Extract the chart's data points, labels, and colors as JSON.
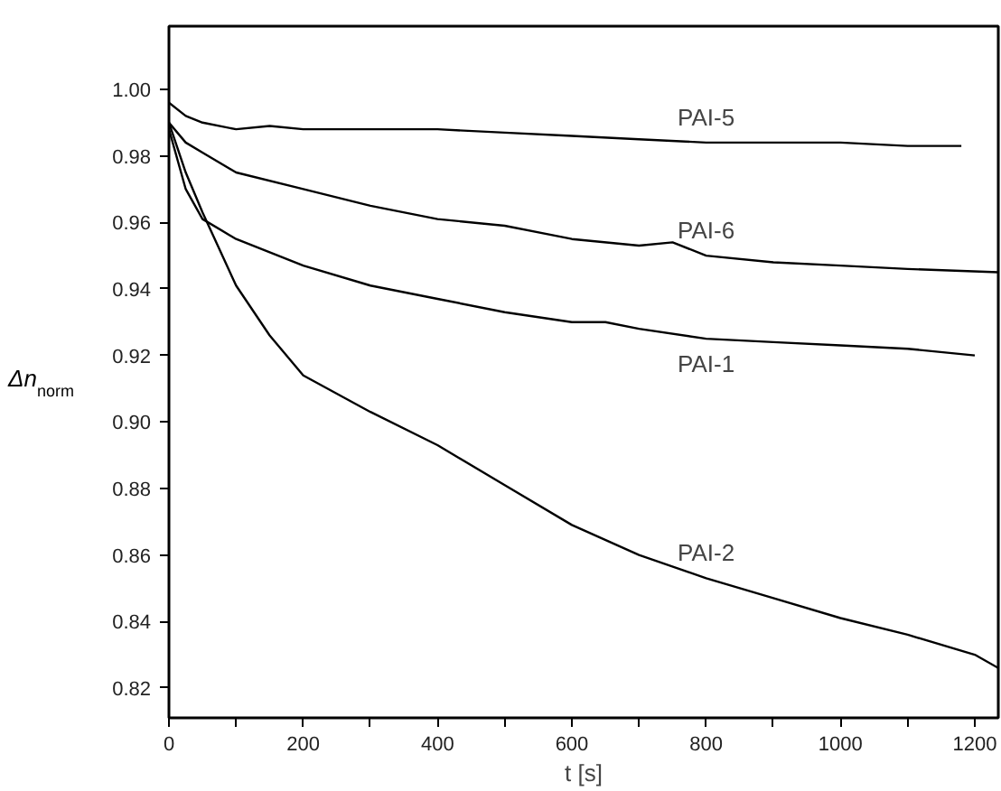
{
  "chart_data": {
    "type": "line",
    "xlabel": "t [s]",
    "ylabel": "Δn$_{norm}$",
    "xlim": [
      0,
      1235
    ],
    "ylim": [
      0.811,
      1.019
    ],
    "xticks": [
      0,
      {
        "value": 100,
        "label": null
      },
      200,
      {
        "value": 300,
        "label": null
      },
      400,
      {
        "value": 500,
        "label": null
      },
      600,
      {
        "value": 700,
        "label": null
      },
      800,
      {
        "value": 900,
        "label": null
      },
      1000,
      {
        "value": 1100,
        "label": null
      },
      1200
    ],
    "yticks": [
      {
        "value": 0.82,
        "label": "0.82"
      },
      {
        "value": 0.84,
        "label": "0.84"
      },
      {
        "value": 0.86,
        "label": "0.86"
      },
      {
        "value": 0.88,
        "label": "0.88"
      },
      {
        "value": 0.9,
        "label": "0.90"
      },
      {
        "value": 0.92,
        "label": "0.92"
      },
      {
        "value": 0.94,
        "label": "0.94"
      },
      {
        "value": 0.96,
        "label": "0.96"
      },
      {
        "value": 0.98,
        "label": "0.98"
      },
      {
        "value": 1.0,
        "label": "1.00"
      }
    ],
    "grid": false,
    "marker": "none",
    "line_style": "solid",
    "series": [
      {
        "name": "PAI-5",
        "color": "#000000",
        "x": [
          0,
          25,
          50,
          100,
          150,
          200,
          300,
          400,
          500,
          600,
          700,
          800,
          900,
          1000,
          1100,
          1180
        ],
        "values": [
          0.996,
          0.992,
          0.99,
          0.988,
          0.989,
          0.988,
          0.988,
          0.988,
          0.987,
          0.986,
          0.985,
          0.984,
          0.984,
          0.984,
          0.983,
          0.983
        ]
      },
      {
        "name": "PAI-6",
        "color": "#000000",
        "x": [
          0,
          25,
          50,
          100,
          200,
          300,
          400,
          500,
          600,
          700,
          750,
          800,
          900,
          1000,
          1100,
          1235
        ],
        "values": [
          0.99,
          0.984,
          0.981,
          0.975,
          0.97,
          0.965,
          0.961,
          0.959,
          0.955,
          0.953,
          0.954,
          0.95,
          0.948,
          0.947,
          0.946,
          0.945
        ]
      },
      {
        "name": "PAI-1",
        "color": "#000000",
        "x": [
          0,
          25,
          50,
          100,
          200,
          300,
          400,
          500,
          600,
          650,
          700,
          800,
          900,
          1000,
          1100,
          1200
        ],
        "values": [
          0.988,
          0.97,
          0.961,
          0.955,
          0.947,
          0.941,
          0.937,
          0.933,
          0.93,
          0.93,
          0.928,
          0.925,
          0.924,
          0.923,
          0.922,
          0.92
        ]
      },
      {
        "name": "PAI-2",
        "color": "#000000",
        "x": [
          0,
          25,
          50,
          100,
          150,
          200,
          300,
          400,
          500,
          600,
          700,
          800,
          900,
          1000,
          1100,
          1200,
          1235
        ],
        "values": [
          0.99,
          0.975,
          0.963,
          0.941,
          0.926,
          0.914,
          0.903,
          0.893,
          0.881,
          0.869,
          0.86,
          0.853,
          0.847,
          0.841,
          0.836,
          0.83,
          0.826
        ]
      }
    ]
  }
}
